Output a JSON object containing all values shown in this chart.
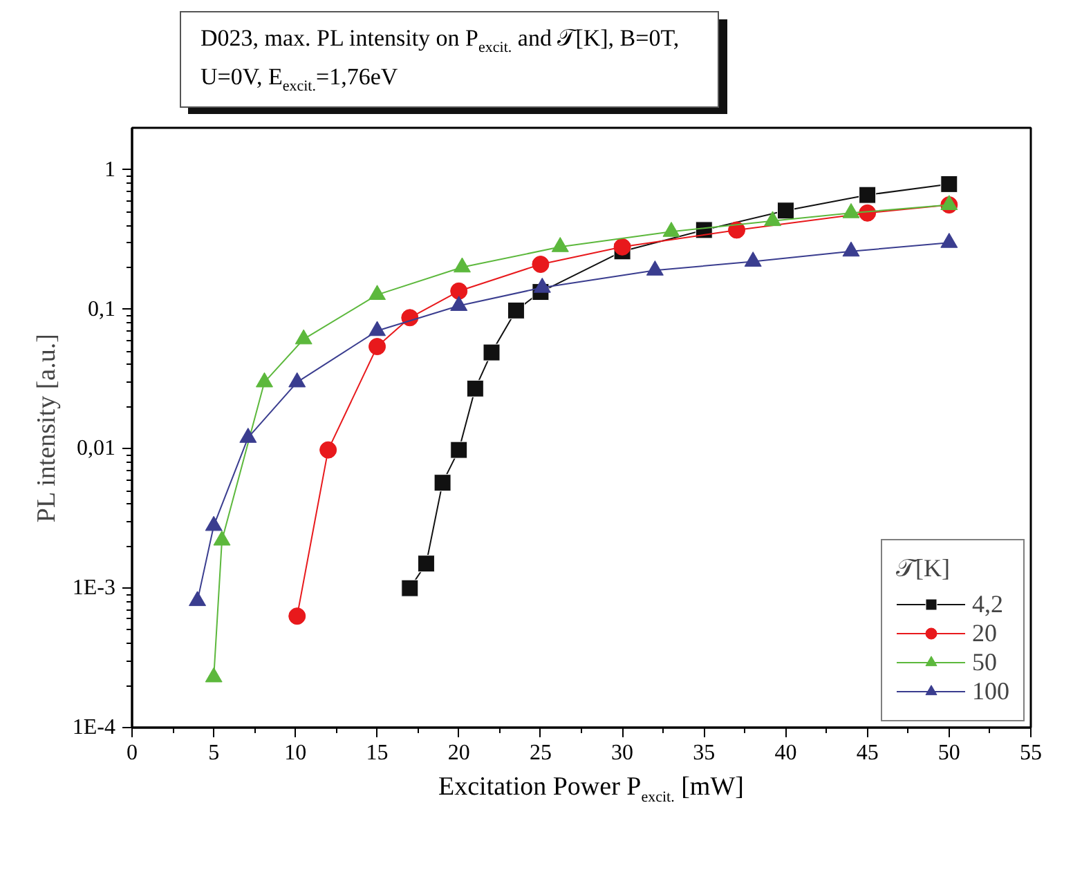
{
  "chart_data": {
    "type": "line",
    "title": "D023, max. PL intensity on P$_{excit.}$ and 𝒯[K], B=0T, U=0V, E$_{excit.}$=1,76eV",
    "xlabel": "Excitation Power P$_{excit.}$ [mW]",
    "ylabel": "PL intensity [a.u.]",
    "legend_title": "𝒯[K]",
    "log": "y",
    "grid": false,
    "legend": "bottom right",
    "line_style": "solid",
    "xlim": [
      0,
      55
    ],
    "xticks": [
      0,
      5,
      10,
      15,
      20,
      25,
      30,
      35,
      40,
      45,
      50,
      55
    ],
    "ylim": [
      0.0001,
      2
    ],
    "yticks": [
      {
        "value": 0.0001,
        "label": "1E-4"
      },
      {
        "value": 0.001,
        "label": "1E-3"
      },
      {
        "value": 0.01,
        "label": "0,01"
      },
      {
        "value": 0.1,
        "label": "0,1"
      },
      1
    ],
    "series": [
      {
        "name": "4,2",
        "color": "#111111",
        "marker": "square",
        "x": [
          17,
          18,
          19,
          20,
          21,
          22,
          23.5,
          25,
          30,
          35,
          40,
          45,
          50
        ],
        "values": [
          0.001,
          0.0015,
          0.0057,
          0.0098,
          0.027,
          0.049,
          0.098,
          0.133,
          0.26,
          0.37,
          0.51,
          0.66,
          0.79
        ]
      },
      {
        "name": "20",
        "color": "#e8191c",
        "marker": "circle",
        "x": [
          10.1,
          12,
          15,
          17,
          20,
          25,
          30,
          37,
          45,
          50
        ],
        "values": [
          0.00063,
          0.0098,
          0.054,
          0.087,
          0.135,
          0.21,
          0.28,
          0.37,
          0.49,
          0.56
        ]
      },
      {
        "name": "50",
        "color": "#5cb83c",
        "marker": "triangle",
        "x": [
          5,
          5.5,
          8.1,
          10.5,
          15,
          20.2,
          26.2,
          33,
          39.2,
          44,
          50
        ],
        "values": [
          0.00023,
          0.0022,
          0.03,
          0.061,
          0.127,
          0.2,
          0.28,
          0.36,
          0.43,
          0.49,
          0.56
        ]
      },
      {
        "name": "100",
        "color": "#3a3d8f",
        "marker": "triangle",
        "x": [
          4,
          5,
          7.1,
          10.1,
          15,
          20,
          25.1,
          32,
          38,
          44,
          50
        ],
        "values": [
          0.00081,
          0.0028,
          0.012,
          0.03,
          0.07,
          0.106,
          0.143,
          0.19,
          0.22,
          0.26,
          0.3
        ]
      }
    ]
  }
}
